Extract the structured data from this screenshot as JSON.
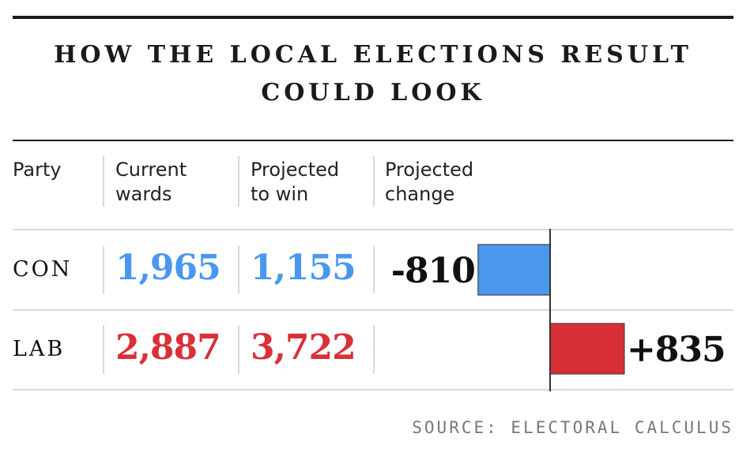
{
  "title": "HOW THE LOCAL ELECTIONS RESULT COULD LOOK",
  "columns": {
    "party": "Party",
    "current": [
      "Current",
      "wards"
    ],
    "projected": [
      "Projected",
      "to win"
    ],
    "change": [
      "Projected",
      "change"
    ]
  },
  "rows": [
    {
      "party": "CON",
      "current": "1,965",
      "projected": "1,155",
      "change_label": "-810"
    },
    {
      "party": "LAB",
      "current": "2,887",
      "projected": "3,722",
      "change_label": "+835"
    }
  ],
  "colors": {
    "CON": "#4a97f0",
    "LAB": "#d93037",
    "text": "#111111",
    "rule": "#1a1a1a",
    "divider": "#d9d9d9",
    "source": "#777777"
  },
  "source": "SOURCE: ELECTORAL CALCULUS",
  "chart_data": {
    "type": "bar",
    "orientation": "horizontal",
    "title": "HOW THE LOCAL ELECTIONS RESULT COULD LOOK",
    "categories": [
      "CON",
      "LAB"
    ],
    "values": [
      -810,
      835
    ],
    "data_labels": [
      "-810",
      "+835"
    ],
    "colors": [
      "#4a97f0",
      "#d93037"
    ],
    "baseline": 0,
    "grid": false
  }
}
